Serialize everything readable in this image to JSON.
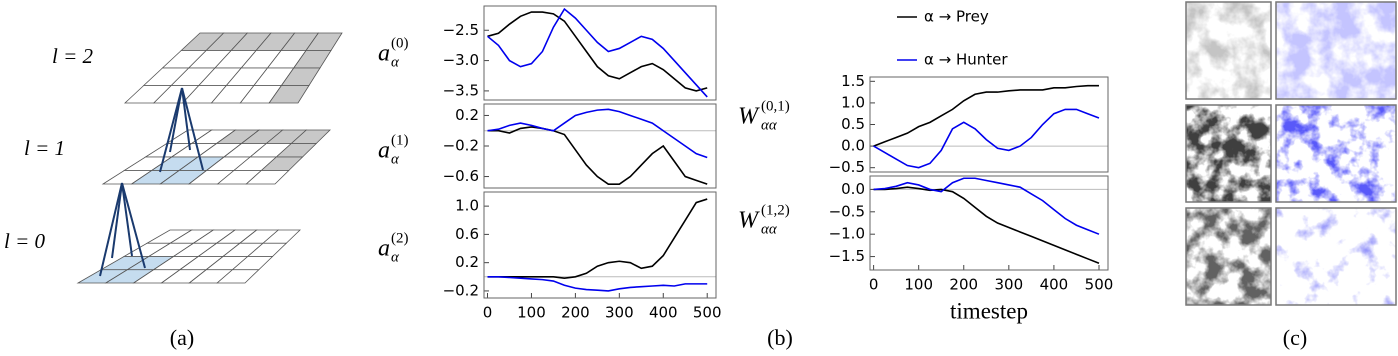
{
  "diagram": {
    "layer_labels": [
      "l = 2",
      "l = 1",
      "l = 0"
    ]
  },
  "panel_labels": [
    "(a)",
    "(b)",
    "(c)"
  ],
  "chart_data": [
    {
      "type": "line",
      "ylabel": {
        "main": "a",
        "sup": "(0)",
        "sub": "α"
      },
      "x": [
        0,
        25,
        50,
        75,
        100,
        125,
        150,
        175,
        200,
        225,
        250,
        275,
        300,
        325,
        350,
        375,
        400,
        425,
        450,
        475,
        500
      ],
      "xlim": [
        -8,
        520
      ],
      "ylim": [
        -3.65,
        -2.1
      ],
      "yticks": [
        {
          "value": -2.5,
          "label": "−2.5"
        },
        {
          "value": -3,
          "label": "−3.0"
        },
        {
          "value": -3.5,
          "label": "−3.5"
        }
      ],
      "series": [
        {
          "color": "#000000",
          "values": [
            -2.6,
            -2.55,
            -2.4,
            -2.27,
            -2.2,
            -2.2,
            -2.23,
            -2.35,
            -2.6,
            -2.85,
            -3.1,
            -3.25,
            -3.3,
            -3.2,
            -3.1,
            -3.05,
            -3.15,
            -3.3,
            -3.45,
            -3.5,
            -3.45
          ]
        },
        {
          "color": "#0000ee",
          "values": [
            -2.6,
            -2.75,
            -3.0,
            -3.1,
            -3.05,
            -2.85,
            -2.45,
            -2.15,
            -2.3,
            -2.5,
            -2.7,
            -2.85,
            -2.8,
            -2.7,
            -2.6,
            -2.65,
            -2.8,
            -3.0,
            -3.2,
            -3.4,
            -3.6
          ]
        }
      ]
    },
    {
      "type": "line",
      "ylabel": {
        "main": "a",
        "sup": "(1)",
        "sub": "α"
      },
      "zero_line": true,
      "x": [
        0,
        25,
        50,
        75,
        100,
        125,
        150,
        175,
        200,
        225,
        250,
        275,
        300,
        325,
        350,
        375,
        400,
        425,
        450,
        475,
        500
      ],
      "xlim": [
        -8,
        520
      ],
      "ylim": [
        -0.75,
        0.35
      ],
      "yticks": [
        0.2,
        {
          "value": -0.2,
          "label": "−0.2"
        },
        {
          "value": -0.6,
          "label": "−0.6"
        }
      ],
      "series": [
        {
          "color": "#000000",
          "values": [
            0,
            0,
            -0.03,
            0.03,
            0.05,
            0.03,
            0,
            -0.05,
            -0.25,
            -0.45,
            -0.6,
            -0.7,
            -0.7,
            -0.6,
            -0.45,
            -0.3,
            -0.2,
            -0.4,
            -0.6,
            -0.65,
            -0.7
          ]
        },
        {
          "color": "#0000ee",
          "values": [
            0,
            0.02,
            0.07,
            0.1,
            0.07,
            0.03,
            0,
            0.1,
            0.2,
            0.24,
            0.27,
            0.28,
            0.25,
            0.2,
            0.15,
            0.1,
            0,
            -0.1,
            -0.2,
            -0.3,
            -0.35
          ]
        }
      ]
    },
    {
      "type": "line",
      "ylabel": {
        "main": "a",
        "sup": "(2)",
        "sub": "α"
      },
      "zero_line": true,
      "x": [
        0,
        25,
        50,
        75,
        100,
        125,
        150,
        175,
        200,
        225,
        250,
        275,
        300,
        325,
        350,
        375,
        400,
        425,
        450,
        475,
        500
      ],
      "xlim": [
        -8,
        520
      ],
      "ylim": [
        -0.3,
        1.2
      ],
      "yticks": [
        {
          "value": 1,
          "label": "1.0"
        },
        0.6,
        0.2,
        {
          "value": -0.2,
          "label": "−0.2"
        }
      ],
      "xticks": [
        0,
        100,
        200,
        300,
        400,
        500
      ],
      "series": [
        {
          "color": "#000000",
          "values": [
            0,
            0,
            0,
            0,
            0,
            0,
            0,
            -0.02,
            0,
            0.05,
            0.15,
            0.2,
            0.22,
            0.2,
            0.12,
            0.15,
            0.3,
            0.55,
            0.8,
            1.05,
            1.1
          ]
        },
        {
          "color": "#0000ee",
          "values": [
            0,
            0,
            -0.01,
            -0.02,
            -0.03,
            -0.04,
            -0.06,
            -0.12,
            -0.16,
            -0.18,
            -0.19,
            -0.2,
            -0.17,
            -0.15,
            -0.14,
            -0.13,
            -0.12,
            -0.13,
            -0.1,
            -0.1,
            -0.1
          ]
        }
      ]
    },
    {
      "type": "line",
      "ylabel": {
        "main": "W",
        "sup": "(0,1)",
        "sub": "αα"
      },
      "zero_line": true,
      "x": [
        0,
        25,
        50,
        75,
        100,
        125,
        150,
        175,
        200,
        225,
        250,
        275,
        300,
        325,
        350,
        375,
        400,
        425,
        450,
        475,
        500
      ],
      "xlim": [
        -8,
        520
      ],
      "ylim": [
        -0.6,
        1.6
      ],
      "yticks": [
        1.5,
        {
          "value": 1,
          "label": "1.0"
        },
        0.5,
        {
          "value": 0,
          "label": "0.0"
        },
        {
          "value": -0.5,
          "label": "−0.5"
        }
      ],
      "series": [
        {
          "name": "α → Prey",
          "color": "#000000",
          "values": [
            0,
            0.1,
            0.2,
            0.3,
            0.45,
            0.55,
            0.7,
            0.85,
            1.05,
            1.2,
            1.25,
            1.25,
            1.28,
            1.3,
            1.3,
            1.3,
            1.35,
            1.35,
            1.38,
            1.4,
            1.4
          ]
        },
        {
          "name": "α → Hunter",
          "color": "#0000ee",
          "values": [
            0,
            -0.15,
            -0.3,
            -0.45,
            -0.5,
            -0.4,
            -0.1,
            0.4,
            0.55,
            0.4,
            0.15,
            -0.05,
            -0.1,
            0,
            0.2,
            0.5,
            0.75,
            0.85,
            0.85,
            0.75,
            0.65
          ]
        }
      ]
    },
    {
      "type": "line",
      "ylabel": {
        "main": "W",
        "sup": "(1,2)",
        "sub": "αα"
      },
      "zero_line": true,
      "xlabel": "timestep",
      "x": [
        0,
        25,
        50,
        75,
        100,
        125,
        150,
        175,
        200,
        225,
        250,
        275,
        300,
        325,
        350,
        375,
        400,
        425,
        450,
        475,
        500
      ],
      "xlim": [
        -8,
        520
      ],
      "ylim": [
        -1.8,
        0.3
      ],
      "yticks": [
        {
          "value": 0,
          "label": "0.0"
        },
        {
          "value": -0.5,
          "label": "−0.5"
        },
        {
          "value": -1,
          "label": "−1.0"
        },
        {
          "value": -1.5,
          "label": "−1.5"
        }
      ],
      "xticks": [
        0,
        100,
        200,
        300,
        400,
        500
      ],
      "series": [
        {
          "color": "#000000",
          "values": [
            0,
            0,
            0.02,
            0.05,
            0.02,
            -0.02,
            0,
            -0.05,
            -0.2,
            -0.4,
            -0.6,
            -0.75,
            -0.85,
            -0.95,
            -1.05,
            -1.15,
            -1.25,
            -1.35,
            -1.45,
            -1.55,
            -1.65
          ]
        },
        {
          "color": "#0000ee",
          "values": [
            0,
            0.02,
            0.07,
            0.15,
            0.1,
            0,
            -0.05,
            0.15,
            0.25,
            0.25,
            0.2,
            0.15,
            0.1,
            0.05,
            -0.1,
            -0.25,
            -0.45,
            -0.65,
            -0.8,
            -0.9,
            -1.0
          ]
        }
      ]
    }
  ]
}
